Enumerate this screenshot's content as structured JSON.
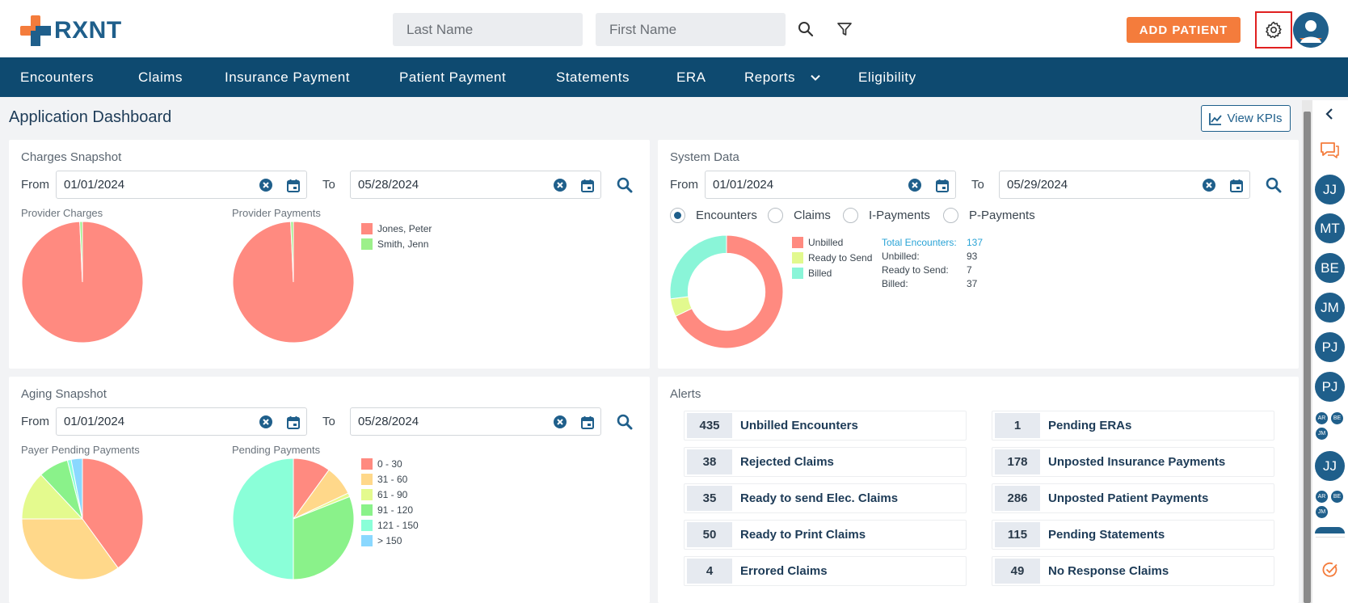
{
  "brand": {
    "name": "RXNT",
    "orange": "#f47c3c",
    "blue": "#1f5f8b"
  },
  "search": {
    "last_name_placeholder": "Last Name",
    "first_name_placeholder": "First Name"
  },
  "header": {
    "add_patient": "ADD PATIENT"
  },
  "nav": {
    "items": [
      "Encounters",
      "Claims",
      "Insurance Payment",
      "Patient Payment",
      "Statements",
      "ERA",
      "Reports",
      "Eligibility"
    ]
  },
  "page": {
    "title": "Application Dashboard",
    "view_kpis": "View KPIs"
  },
  "charges": {
    "title": "Charges Snapshot",
    "from_label": "From",
    "to_label": "To",
    "from": "01/01/2024",
    "to": "05/28/2024",
    "provider_charges_label": "Provider Charges",
    "provider_payments_label": "Provider Payments",
    "legend": [
      "Jones, Peter",
      "Smith, Jenn"
    ]
  },
  "system": {
    "title": "System Data",
    "from_label": "From",
    "to_label": "To",
    "from": "01/01/2024",
    "to": "05/29/2024",
    "radios": [
      "Encounters",
      "Claims",
      "I-Payments",
      "P-Payments"
    ],
    "selected": "Encounters",
    "legend": [
      "Unbilled",
      "Ready to Send",
      "Billed"
    ],
    "stats": {
      "total_label": "Total Encounters:",
      "total": "137",
      "unbilled_label": "Unbilled:",
      "unbilled": "93",
      "ready_label": "Ready to Send:",
      "ready": "7",
      "billed_label": "Billed:",
      "billed": "37"
    }
  },
  "aging": {
    "title": "Aging Snapshot",
    "from_label": "From",
    "to_label": "To",
    "from": "01/01/2024",
    "to": "05/28/2024",
    "payer_label": "Payer Pending Payments",
    "pending_label": "Pending Payments",
    "legend": [
      "0 - 30",
      "31 - 60",
      "61 - 90",
      "91 - 120",
      "121 - 150",
      "> 150"
    ]
  },
  "alerts": {
    "title": "Alerts",
    "left": [
      {
        "count": "435",
        "label": "Unbilled Encounters"
      },
      {
        "count": "38",
        "label": "Rejected Claims"
      },
      {
        "count": "35",
        "label": "Ready to send Elec. Claims"
      },
      {
        "count": "50",
        "label": "Ready to Print Claims"
      },
      {
        "count": "4",
        "label": "Errored Claims"
      }
    ],
    "right": [
      {
        "count": "1",
        "label": "Pending ERAs"
      },
      {
        "count": "178",
        "label": "Unposted Insurance Payments"
      },
      {
        "count": "286",
        "label": "Unposted Patient Payments"
      },
      {
        "count": "115",
        "label": "Pending Statements"
      },
      {
        "count": "49",
        "label": "No Response Claims"
      }
    ]
  },
  "rail": {
    "avatars": [
      "JJ",
      "MT",
      "BE",
      "JM",
      "PJ",
      "PJ"
    ],
    "group1": [
      "AR",
      "BE",
      "JM"
    ],
    "avatar_after": "JJ",
    "group2": [
      "AR",
      "BE",
      "JM"
    ]
  },
  "chart_data": [
    {
      "type": "pie",
      "title": "Provider Charges",
      "categories": [
        "Jones, Peter",
        "Smith, Jenn"
      ],
      "values": [
        99.3,
        0.7
      ],
      "colors": [
        "#ff8a80",
        "#9cf08a"
      ]
    },
    {
      "type": "pie",
      "title": "Provider Payments",
      "categories": [
        "Jones, Peter",
        "Smith, Jenn"
      ],
      "values": [
        99.3,
        0.7
      ],
      "colors": [
        "#ff8a80",
        "#9cf08a"
      ]
    },
    {
      "type": "pie",
      "title": "Encounters",
      "categories": [
        "Unbilled",
        "Ready to Send",
        "Billed"
      ],
      "values": [
        93,
        7,
        37
      ],
      "colors": [
        "#ff8a80",
        "#e2f98e",
        "#8af5d8"
      ]
    },
    {
      "type": "pie",
      "title": "Payer Pending Payments",
      "categories": [
        "0 - 30",
        "31 - 60",
        "61 - 90",
        "91 - 120",
        "121 - 150",
        "> 150"
      ],
      "values": [
        40,
        35,
        13,
        8,
        1,
        3
      ],
      "colors": [
        "#ff8a80",
        "#ffd88a",
        "#e4fa8e",
        "#8af28a",
        "#8affd8",
        "#8ad8ff"
      ]
    },
    {
      "type": "pie",
      "title": "Pending Payments",
      "categories": [
        "0 - 30",
        "31 - 60",
        "61 - 90",
        "91 - 120",
        "121 - 150",
        "> 150"
      ],
      "values": [
        10,
        8,
        1,
        31,
        50,
        0
      ],
      "colors": [
        "#ff8a80",
        "#ffd88a",
        "#e4fa8e",
        "#8af28a",
        "#8affd8",
        "#8ad8ff"
      ]
    }
  ]
}
